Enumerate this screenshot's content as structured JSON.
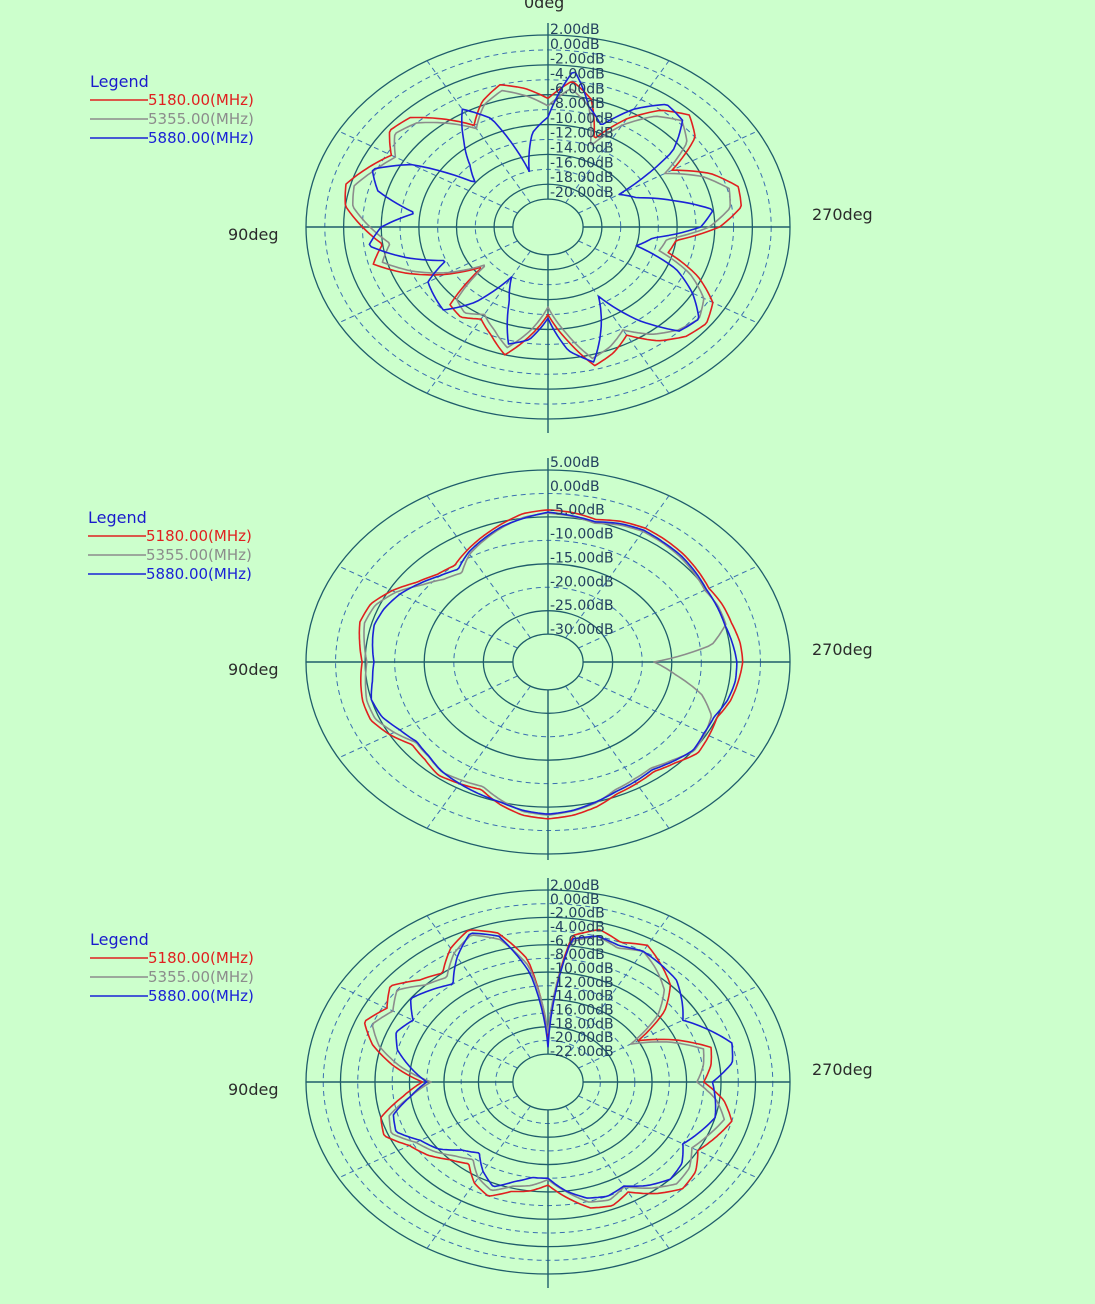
{
  "colors": {
    "background": "#ccffcc",
    "ring": "#1f5d6b",
    "grid_dash": "#3a6fb0"
  },
  "chart_data": [
    {
      "type": "polar",
      "legend_title": "Legend",
      "legend_position": "top-left",
      "angle_labels": {
        "top": "0deg",
        "left": "90deg",
        "right": "270deg"
      },
      "radial_ticks": [
        "2.00dB",
        "0.00dB",
        "-2.00dB",
        "-4.00dB",
        "-6.00dB",
        "-8.00dB",
        "-10.00dB",
        "-12.00dB",
        "-14.00dB",
        "-16.00dB",
        "-18.00dB",
        "-20.00dB"
      ],
      "rmax": 2,
      "rmin": -20,
      "series": [
        {
          "name": "5180.00(MHz)",
          "color": "#e02020",
          "gain_db": [
            -6.5,
            -5.0,
            -4.0,
            -5.5,
            -8.0,
            -5.5,
            -3.0,
            -2.5,
            -4.5,
            -3.0,
            -1.5,
            -2.0,
            -4.0,
            -6.0,
            -4.5,
            -7.5,
            -11.0,
            -15.0,
            -9.0,
            -8.5,
            -9.5,
            -8.0,
            -6.0,
            -9.0,
            -12.0,
            -8.5,
            -4.5,
            -5.5,
            -7.0,
            -4.5,
            -3.0,
            -2.5,
            -3.5,
            -6.5,
            -10.5,
            -10.0,
            -5.5,
            -3.0,
            -2.8,
            -5.0,
            -8.5,
            -4.0,
            -2.5,
            -4.0,
            -7.0,
            -11.0,
            -6.0,
            -4.0
          ]
        },
        {
          "name": "5355.00(MHz)",
          "color": "#8c8c8c",
          "gain_db": [
            -7.5,
            -6.0,
            -4.8,
            -6.0,
            -8.5,
            -6.2,
            -4.0,
            -3.2,
            -5.0,
            -3.8,
            -2.4,
            -2.8,
            -4.8,
            -6.8,
            -5.5,
            -8.2,
            -11.5,
            -15.5,
            -10.0,
            -9.2,
            -10.2,
            -8.8,
            -7.0,
            -9.8,
            -13.0,
            -9.5,
            -5.5,
            -6.4,
            -7.8,
            -5.6,
            -4.2,
            -3.5,
            -4.6,
            -7.4,
            -11.5,
            -11.0,
            -6.6,
            -4.2,
            -3.8,
            -6.0,
            -9.4,
            -5.1,
            -3.6,
            -5.0,
            -8.0,
            -12.0,
            -7.0,
            -5.0
          ]
        },
        {
          "name": "5880.00(MHz)",
          "color": "#1a22d6",
          "gain_db": [
            -9.0,
            -11.0,
            -16.0,
            -8.0,
            -5.5,
            -9.0,
            -12.0,
            -14.0,
            -7.0,
            -3.5,
            -5.0,
            -9.5,
            -6.0,
            -4.5,
            -8.0,
            -12.0,
            -9.0,
            -8.5,
            -8.0,
            -11.0,
            -16.0,
            -13.0,
            -7.5,
            -8.5,
            -11.5,
            -7.0,
            -5.0,
            -9.0,
            -13.0,
            -8.0,
            -4.0,
            -3.5,
            -6.0,
            -9.0,
            -14.0,
            -12.5,
            -7.5,
            -6.0,
            -10.0,
            -13.5,
            -15.0,
            -7.0,
            -3.5,
            -3.0,
            -5.5,
            -9.0,
            -7.0,
            -2.5
          ]
        }
      ]
    },
    {
      "type": "polar",
      "legend_title": "Legend",
      "legend_position": "top-left",
      "angle_labels": {
        "left": "90deg",
        "right": "270deg"
      },
      "radial_ticks": [
        "5.00dB",
        "0.00dB",
        "-5.00dB",
        "-10.00dB",
        "-15.00dB",
        "-20.00dB",
        "-25.00dB",
        "-30.00dB"
      ],
      "rmax": 5,
      "rmin": -30,
      "series": [
        {
          "name": "5180.00(MHz)",
          "color": "#e02020",
          "gain_db": [
            -3.5,
            -4.0,
            -5.5,
            -7.0,
            -8.5,
            -10.0,
            -9.5,
            -8.0,
            -5.5,
            -3.5,
            -3.0,
            -3.8,
            -4.5,
            -4.0,
            -3.5,
            -3.5,
            -5.0,
            -7.0,
            -6.5,
            -5.5,
            -6.0,
            -6.5,
            -4.5,
            -3.0,
            -2.5,
            -3.0,
            -4.0,
            -5.5,
            -6.0,
            -6.5,
            -5.5,
            -4.0,
            -4.5,
            -5.0,
            -4.0,
            -3.5,
            -3.0,
            -3.2,
            -3.8,
            -4.0,
            -4.5,
            -4.0,
            -3.5,
            -3.2,
            -3.0,
            -3.5,
            -4.5,
            -3.8
          ]
        },
        {
          "name": "5355.00(MHz)",
          "color": "#8c8c8c",
          "gain_db": [
            -4.2,
            -4.8,
            -6.2,
            -7.8,
            -9.4,
            -12.0,
            -11.0,
            -9.0,
            -6.2,
            -4.3,
            -3.8,
            -4.6,
            -5.3,
            -4.8,
            -4.2,
            -4.3,
            -5.9,
            -7.8,
            -7.4,
            -6.4,
            -6.8,
            -7.2,
            -5.4,
            -3.8,
            -3.3,
            -3.9,
            -4.8,
            -6.4,
            -7.0,
            -7.4,
            -6.3,
            -4.8,
            -5.3,
            -6.0,
            -9.0,
            -14.0,
            -18.0,
            -8.0,
            -4.8,
            -4.8,
            -5.3,
            -4.8,
            -4.3,
            -4.0,
            -3.8,
            -4.3,
            -5.3,
            -4.6
          ]
        },
        {
          "name": "5880.00(MHz)",
          "color": "#1a22d6",
          "gain_db": [
            -4.0,
            -5.0,
            -6.0,
            -7.5,
            -9.0,
            -11.0,
            -10.0,
            -8.5,
            -7.0,
            -6.0,
            -5.5,
            -6.0,
            -6.5,
            -6.0,
            -5.0,
            -5.5,
            -7.0,
            -8.0,
            -7.5,
            -6.5,
            -6.0,
            -5.5,
            -5.0,
            -4.0,
            -3.5,
            -4.0,
            -5.0,
            -6.0,
            -6.5,
            -7.0,
            -6.0,
            -5.0,
            -5.5,
            -5.5,
            -4.5,
            -4.0,
            -4.0,
            -4.5,
            -5.0,
            -5.0,
            -5.0,
            -4.5,
            -4.0,
            -3.8,
            -3.5,
            -4.0,
            -5.0,
            -4.5
          ]
        }
      ]
    },
    {
      "type": "polar",
      "legend_title": "Legend",
      "legend_position": "top-left",
      "angle_labels": {
        "left": "90deg",
        "right": "270deg"
      },
      "radial_ticks": [
        "2.00dB",
        "0.00dB",
        "-2.00dB",
        "-4.00dB",
        "-6.00dB",
        "-8.00dB",
        "-10.00dB",
        "-12.00dB",
        "-14.00dB",
        "-16.00dB",
        "-18.00dB",
        "-20.00dB",
        "-22.00dB"
      ],
      "rmax": 2,
      "rmin": -22,
      "series": [
        {
          "name": "5180.00(MHz)",
          "color": "#e02020",
          "gain_db": [
            -20.0,
            -8.0,
            -3.5,
            -2.0,
            -3.5,
            -6.0,
            -5.0,
            -3.0,
            -4.5,
            -3.0,
            -5.0,
            -8.0,
            -11.5,
            -9.0,
            -6.0,
            -5.5,
            -7.5,
            -8.5,
            -10.0,
            -11.0,
            -9.0,
            -8.0,
            -9.5,
            -10.0,
            -11.0,
            -9.0,
            -7.0,
            -6.5,
            -7.5,
            -5.5,
            -4.0,
            -4.5,
            -6.0,
            -5.0,
            -4.0,
            -5.5,
            -8.0,
            -7.0,
            -6.5,
            -10.0,
            -14.0,
            -9.0,
            -6.0,
            -4.5,
            -3.0,
            -4.0,
            -3.0,
            -4.5
          ]
        },
        {
          "name": "5355.00(MHz)",
          "color": "#8c8c8c",
          "gain_db": [
            -19.0,
            -9.0,
            -4.5,
            -2.8,
            -4.3,
            -6.8,
            -6.0,
            -4.0,
            -5.3,
            -4.0,
            -5.8,
            -8.8,
            -12.5,
            -10.0,
            -7.0,
            -6.4,
            -8.4,
            -9.4,
            -10.8,
            -11.8,
            -9.9,
            -8.9,
            -10.3,
            -10.8,
            -11.8,
            -9.9,
            -7.9,
            -7.4,
            -8.4,
            -6.5,
            -5.0,
            -5.4,
            -6.8,
            -5.9,
            -4.9,
            -6.4,
            -8.8,
            -7.9,
            -7.4,
            -10.8,
            -15.0,
            -10.0,
            -7.0,
            -5.4,
            -4.0,
            -4.9,
            -4.0,
            -5.4
          ]
        },
        {
          "name": "5880.00(MHz)",
          "color": "#1a22d6",
          "gain_db": [
            -21.0,
            -10.0,
            -4.0,
            -2.5,
            -5.0,
            -8.0,
            -7.0,
            -6.0,
            -8.0,
            -7.0,
            -8.0,
            -10.0,
            -12.0,
            -10.0,
            -7.5,
            -7.0,
            -9.0,
            -10.0,
            -12.0,
            -13.0,
            -11.0,
            -9.5,
            -11.0,
            -12.0,
            -12.0,
            -10.0,
            -8.5,
            -8.0,
            -8.5,
            -7.0,
            -6.0,
            -6.5,
            -8.0,
            -7.0,
            -6.0,
            -6.5,
            -7.0,
            -4.5,
            -4.0,
            -6.0,
            -8.0,
            -6.5,
            -5.0,
            -4.5,
            -4.0,
            -4.5,
            -4.0,
            -5.0
          ]
        }
      ]
    }
  ]
}
